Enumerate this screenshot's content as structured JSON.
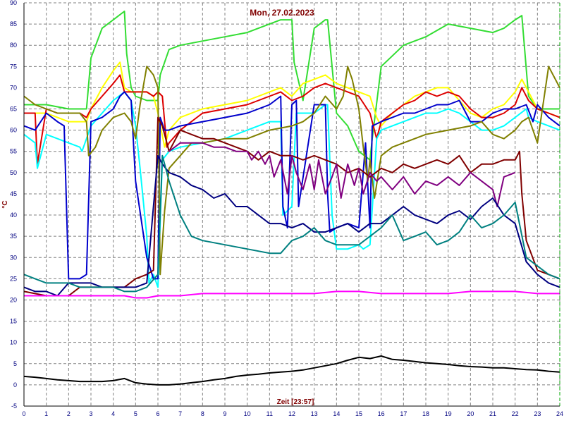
{
  "chart_data": {
    "type": "line",
    "title": "Mon, 27.02.2023",
    "xlabel": "Zeit [23:57]",
    "ylabel": "°C",
    "xlim": [
      0,
      24
    ],
    "ylim": [
      -5,
      90
    ],
    "x_ticks": [
      "0",
      "1",
      "2",
      "3",
      "4",
      "5",
      "6",
      "7",
      "8",
      "9",
      "10",
      "11",
      "12",
      "13",
      "14",
      "15",
      "16",
      "17",
      "18",
      "19",
      "20",
      "21",
      "22",
      "23",
      "24"
    ],
    "y_ticks": [
      "-5",
      "0",
      "5",
      "10",
      "15",
      "20",
      "25",
      "30",
      "35",
      "40",
      "45",
      "50",
      "55",
      "60",
      "65",
      "70",
      "75",
      "80",
      "85",
      "90"
    ],
    "grid": true,
    "series": [
      {
        "color": "#33dd33",
        "x": [
          0,
          0.5,
          1,
          2,
          2.8,
          3,
          3.5,
          4,
          4.5,
          4.6,
          4.8,
          5,
          5.5,
          6,
          6.1,
          6.5,
          7,
          8,
          9,
          10,
          11,
          11.5,
          12,
          12.1,
          12.5,
          13,
          13.5,
          13.6,
          14,
          14.5,
          15,
          15.5,
          15.6,
          16,
          17,
          18,
          19,
          20,
          21,
          21.5,
          22,
          22.3,
          22.6,
          23,
          23.5,
          24
        ],
        "y": [
          66,
          66,
          66,
          65,
          65,
          77,
          84,
          86,
          88,
          78,
          70,
          68,
          67,
          67,
          73,
          79,
          80,
          81,
          82,
          83,
          85,
          86,
          86,
          76,
          67,
          84,
          86,
          86,
          64,
          61,
          55,
          53,
          58,
          75,
          80,
          82,
          85,
          84,
          83,
          84,
          86,
          87,
          68,
          65,
          65,
          65
        ]
      },
      {
        "color": "#ffff00",
        "x": [
          0,
          0.5,
          1,
          1.5,
          2,
          2.8,
          3,
          3.5,
          4,
          4.3,
          4.5,
          4.8,
          5,
          5.5,
          5.8,
          6,
          6.3,
          6.5,
          7,
          8,
          9,
          10,
          10.5,
          11,
          11.5,
          12,
          12.5,
          13,
          13.5,
          14,
          14.5,
          15,
          15.5,
          15.8,
          16,
          16.5,
          17,
          17.5,
          18,
          18.5,
          19,
          19.5,
          20,
          20.5,
          21,
          21.5,
          22,
          22.3,
          22.6,
          23,
          23.5,
          24
        ],
        "y": [
          64,
          64,
          64,
          63,
          62,
          62,
          65,
          70,
          74,
          76,
          70,
          69,
          69,
          69,
          68,
          64,
          56,
          60,
          63,
          65,
          66,
          67,
          68,
          69,
          70,
          68,
          71,
          72,
          73,
          71,
          70,
          69,
          68,
          63,
          61,
          64,
          66,
          68,
          69,
          70,
          70,
          67,
          64,
          63,
          65,
          66,
          69,
          72,
          69,
          65,
          64,
          63
        ]
      },
      {
        "color": "#dd0000",
        "x": [
          0,
          0.5,
          0.6,
          1,
          1.5,
          2,
          2.5,
          2.8,
          3,
          3.5,
          4,
          4.3,
          4.5,
          4.8,
          5,
          5.5,
          5.8,
          6,
          6.2,
          6.4,
          6.5,
          7,
          8,
          9,
          10,
          10.5,
          11,
          11.5,
          12,
          12.5,
          13,
          13.5,
          14,
          14.5,
          15,
          15.5,
          15.8,
          16,
          16.5,
          17,
          17.5,
          18,
          18.5,
          19,
          19.5,
          20,
          20.5,
          21,
          21.5,
          22,
          22.3,
          22.6,
          23,
          23.5,
          24
        ],
        "y": [
          64,
          64,
          52,
          65,
          64,
          64,
          64,
          63,
          65,
          68,
          71,
          73,
          69,
          69,
          69,
          69,
          68,
          69,
          68,
          56,
          57,
          60,
          64,
          65,
          66,
          67,
          68,
          69,
          67,
          68,
          70,
          71,
          70,
          69,
          68,
          64,
          58,
          62,
          64,
          66,
          67,
          69,
          68,
          69,
          68,
          65,
          63,
          63,
          64,
          66,
          70,
          67,
          65,
          64,
          63
        ]
      },
      {
        "color": "#00ffff",
        "x": [
          0,
          0.5,
          0.6,
          1,
          1.5,
          2,
          2.5,
          2.6,
          2.8,
          3,
          3.5,
          4,
          4.5,
          4.8,
          5,
          5.2,
          5.5,
          5.6,
          5.8,
          6,
          6.2,
          6.5,
          7,
          8,
          9,
          10,
          11,
          11.5,
          11.6,
          12,
          12.2,
          13,
          13.5,
          13.6,
          13.8,
          14,
          14.5,
          15,
          15.2,
          15.5,
          15.8,
          16,
          16.5,
          17,
          17.5,
          18,
          18.5,
          19,
          19.5,
          20,
          20.5,
          21,
          21.5,
          22,
          22.5,
          22.6,
          23,
          23.5,
          24
        ],
        "y": [
          59,
          57,
          51,
          59,
          58,
          57,
          56,
          55,
          58,
          61,
          64,
          67,
          69,
          67,
          61,
          51,
          35,
          24,
          26,
          23,
          53,
          55,
          56,
          57,
          58,
          60,
          62,
          62,
          40,
          42,
          64,
          64,
          66,
          66,
          40,
          32,
          32,
          33,
          32,
          33,
          58,
          60,
          61,
          62,
          63,
          64,
          64,
          65,
          64,
          62,
          60,
          60,
          61,
          63,
          65,
          63,
          62,
          61,
          60
        ]
      },
      {
        "color": "#0000cc",
        "x": [
          0,
          0.5,
          1,
          1.5,
          1.8,
          2,
          2.5,
          2.8,
          3,
          3.5,
          4,
          4.3,
          4.5,
          4.8,
          5,
          5.5,
          5.8,
          6,
          6.1,
          6.3,
          6.5,
          7,
          8,
          9,
          10,
          11,
          11.5,
          11.6,
          11.8,
          12,
          12.2,
          12.3,
          13,
          13.5,
          13.6,
          13.7,
          14,
          14.5,
          15,
          15.3,
          15.5,
          15.6,
          16,
          16.5,
          17,
          17.5,
          18,
          18.5,
          19,
          19.5,
          20,
          20.5,
          21,
          21.5,
          22,
          22.5,
          22.8,
          23,
          23.5,
          24
        ],
        "y": [
          61,
          60,
          64,
          62,
          61,
          25,
          25,
          26,
          62,
          63,
          65,
          68,
          69,
          67,
          48,
          30,
          25,
          25,
          63,
          60,
          60,
          61,
          62,
          63,
          64,
          66,
          68,
          42,
          37,
          66,
          67,
          42,
          66,
          66,
          45,
          36,
          37,
          38,
          37,
          57,
          37,
          61,
          62,
          63,
          64,
          64,
          65,
          66,
          66,
          67,
          62,
          62,
          64,
          65,
          65,
          66,
          62,
          66,
          63,
          61
        ]
      },
      {
        "color": "#808000",
        "x": [
          0,
          0.5,
          1,
          1.5,
          2,
          2.5,
          2.8,
          2.9,
          3.2,
          3.5,
          4,
          4.5,
          4.8,
          5,
          5.2,
          5.5,
          5.8,
          6,
          6.1,
          6.3,
          6.5,
          7,
          7.5,
          8,
          9,
          10,
          11,
          12,
          12.5,
          13,
          13.5,
          14,
          14.3,
          14.5,
          14.7,
          15,
          15.2,
          15.4,
          15.5,
          15.7,
          16,
          16.5,
          17,
          17.5,
          18,
          19,
          20,
          20.5,
          21,
          21.5,
          22,
          22.3,
          22.6,
          23,
          23.5,
          24
        ],
        "y": [
          68,
          66,
          65,
          64,
          64,
          64,
          62,
          54,
          56,
          60,
          63,
          64,
          62,
          58,
          66,
          75,
          73,
          70,
          26,
          41,
          51,
          54,
          57,
          57,
          58,
          58,
          60,
          61,
          62,
          64,
          68,
          65,
          68,
          75,
          72,
          65,
          56,
          48,
          53,
          44,
          54,
          56,
          57,
          58,
          59,
          60,
          61,
          62,
          59,
          58,
          60,
          62,
          63,
          57,
          75,
          70
        ]
      },
      {
        "color": "#800000",
        "x": [
          0,
          1,
          1.5,
          2,
          2.5,
          3,
          3.5,
          4,
          4.5,
          5,
          5.5,
          5.8,
          6,
          6.2,
          6.4,
          6.5,
          7,
          7.5,
          8,
          8.5,
          9,
          9.5,
          10,
          10.5,
          11,
          11.5,
          12,
          12.5,
          13,
          13.5,
          14,
          14.5,
          15,
          15.5,
          16,
          16.5,
          17,
          17.5,
          18,
          18.5,
          19,
          19.5,
          20,
          20.5,
          21,
          21.5,
          22,
          22.2,
          22.3,
          22.5,
          23,
          23.5,
          24
        ],
        "y": [
          22,
          21,
          21,
          21,
          23,
          23,
          23,
          23,
          23,
          25,
          26,
          27,
          63,
          61,
          57,
          55,
          60,
          59,
          58,
          58,
          57,
          56,
          55,
          53,
          55,
          54,
          54,
          53,
          54,
          53,
          52,
          50,
          51,
          49,
          51,
          50,
          52,
          51,
          52,
          53,
          52,
          54,
          50,
          52,
          52,
          53,
          53,
          55,
          45,
          34,
          27,
          26,
          25
        ]
      },
      {
        "color": "#800080",
        "x": [
          6.5,
          7,
          7.5,
          8,
          8.5,
          9,
          9.5,
          10,
          10.2,
          10.5,
          10.8,
          11,
          11.2,
          11.5,
          11.8,
          12,
          12.2,
          12.5,
          12.8,
          13,
          13.2,
          13.5,
          13.8,
          14,
          14.2,
          14.5,
          14.8,
          15,
          15.2,
          15.5,
          15.8,
          16,
          16.5,
          17,
          17.5,
          18,
          18.5,
          19,
          19.5,
          20,
          20.5,
          21,
          21.2,
          21.5,
          22
        ],
        "y": [
          55,
          57,
          57,
          57,
          56,
          56,
          55,
          55,
          53,
          55,
          52,
          54,
          49,
          53,
          45,
          54,
          50,
          46,
          52,
          46,
          53,
          45,
          49,
          52,
          44,
          52,
          47,
          51,
          45,
          50,
          48,
          49,
          46,
          49,
          45,
          48,
          47,
          49,
          47,
          50,
          48,
          46,
          42,
          49,
          50
        ]
      },
      {
        "color": "#000080",
        "x": [
          0,
          0.5,
          1,
          1.5,
          2,
          2.5,
          3,
          3.5,
          4,
          4.5,
          5,
          5.5,
          6,
          6.2,
          6.5,
          7,
          7.5,
          8,
          8.5,
          9,
          9.5,
          10,
          10.5,
          11,
          11.5,
          12,
          12.5,
          13,
          13.5,
          14,
          14.5,
          15,
          15.5,
          16,
          16.5,
          17,
          17.5,
          18,
          18.5,
          19,
          19.5,
          20,
          20.5,
          21,
          21.5,
          22,
          22.5,
          23,
          23.5,
          24
        ],
        "y": [
          23,
          22,
          22,
          21,
          24,
          24,
          24,
          23,
          23,
          23,
          23,
          24,
          54,
          52,
          50,
          49,
          47,
          46,
          44,
          45,
          42,
          42,
          40,
          38,
          38,
          37,
          38,
          36,
          36,
          37,
          38,
          36,
          38,
          38,
          40,
          42,
          40,
          39,
          38,
          40,
          41,
          39,
          42,
          44,
          40,
          38,
          29,
          26,
          24,
          23
        ]
      },
      {
        "color": "#008080",
        "x": [
          0,
          0.5,
          1,
          1.5,
          2,
          2.5,
          3,
          3.5,
          4,
          4.5,
          5,
          5.5,
          6,
          6.2,
          6.5,
          7,
          7.5,
          8,
          9,
          10,
          11,
          11.5,
          12,
          12.5,
          13,
          13.5,
          14,
          14.5,
          15,
          15.5,
          16,
          16.5,
          17,
          17.5,
          18,
          18.5,
          19,
          19.5,
          20,
          20.5,
          21,
          21.5,
          22,
          22.5,
          23,
          23.5,
          24
        ],
        "y": [
          26,
          25,
          24,
          24,
          24,
          23,
          23,
          23,
          23,
          22,
          22,
          23,
          26,
          54,
          48,
          40,
          35,
          34,
          33,
          32,
          31,
          31,
          34,
          35,
          37,
          34,
          33,
          33,
          33,
          35,
          37,
          40,
          34,
          35,
          36,
          33,
          34,
          36,
          40,
          37,
          38,
          40,
          43,
          30,
          28,
          26,
          25
        ]
      },
      {
        "color": "#ff00ff",
        "x": [
          0,
          1,
          2,
          3,
          4,
          4.5,
          5,
          5.5,
          6,
          6.5,
          7,
          8,
          9,
          10,
          11,
          12,
          13,
          14,
          15,
          16,
          17,
          18,
          19,
          20,
          21,
          22,
          23,
          24
        ],
        "y": [
          21,
          21,
          21,
          21,
          21,
          21,
          20.5,
          20.5,
          21,
          21,
          21,
          21.5,
          21.5,
          21.5,
          21.5,
          21.5,
          21.5,
          22,
          22,
          21.5,
          21.5,
          21.5,
          21.5,
          22,
          22,
          22,
          21.5,
          21.5
        ]
      },
      {
        "color": "#000000",
        "x": [
          0,
          0.5,
          1,
          1.5,
          2,
          2.5,
          3,
          3.5,
          4,
          4.5,
          5,
          5.5,
          6,
          6.5,
          7,
          7.5,
          8,
          8.5,
          9,
          9.5,
          10,
          10.5,
          11,
          11.5,
          12,
          12.5,
          13,
          13.5,
          14,
          14.5,
          15,
          15.5,
          16,
          16.5,
          17,
          17.5,
          18,
          18.5,
          19,
          19.5,
          20,
          20.5,
          21,
          21.5,
          22,
          22.5,
          23,
          23.5,
          24
        ],
        "y": [
          2,
          1.8,
          1.5,
          1.2,
          1,
          0.8,
          0.8,
          0.8,
          1,
          1.5,
          0.5,
          0.2,
          0,
          0,
          0.2,
          0.5,
          0.8,
          1.2,
          1.5,
          2,
          2.3,
          2.5,
          2.8,
          3,
          3.2,
          3.5,
          4,
          4.5,
          5,
          5.8,
          6.5,
          6.2,
          6.8,
          6,
          5.8,
          5.5,
          5.2,
          5,
          4.8,
          4.5,
          4.3,
          4.2,
          4,
          4,
          3.8,
          3.6,
          3.5,
          3.2,
          3
        ]
      }
    ]
  }
}
